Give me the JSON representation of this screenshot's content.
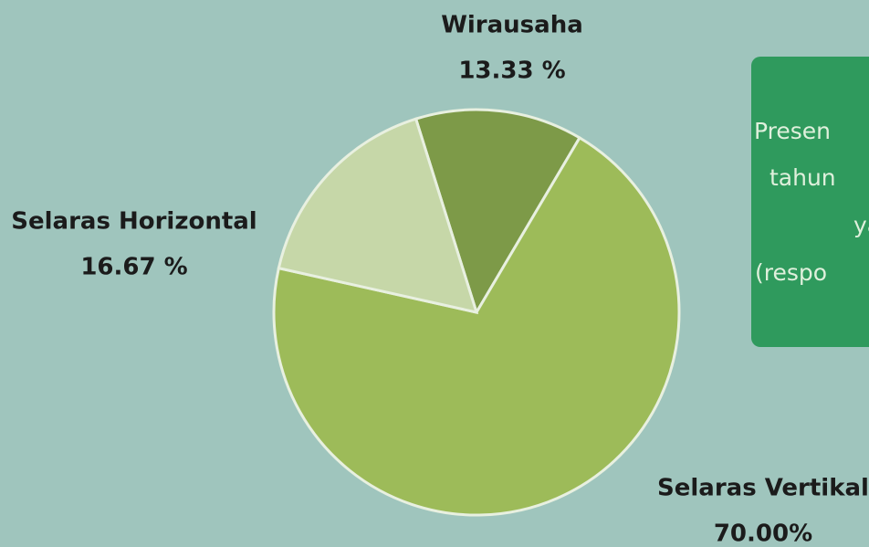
{
  "chart_data": {
    "type": "pie",
    "categories": [
      "Wirausaha",
      "Selaras Vertikal",
      "Selaras Horizontal"
    ],
    "values": [
      13.33,
      70,
      16.67
    ],
    "value_labels": [
      "13.33 %",
      "70.00%",
      "16.67 %"
    ],
    "colors": [
      "#7d9a48",
      "#9dbb59",
      "#c6d7a8"
    ]
  },
  "info_box": {
    "lines": [
      "Presen",
      "tahun",
      "ya",
      "(respo"
    ]
  }
}
